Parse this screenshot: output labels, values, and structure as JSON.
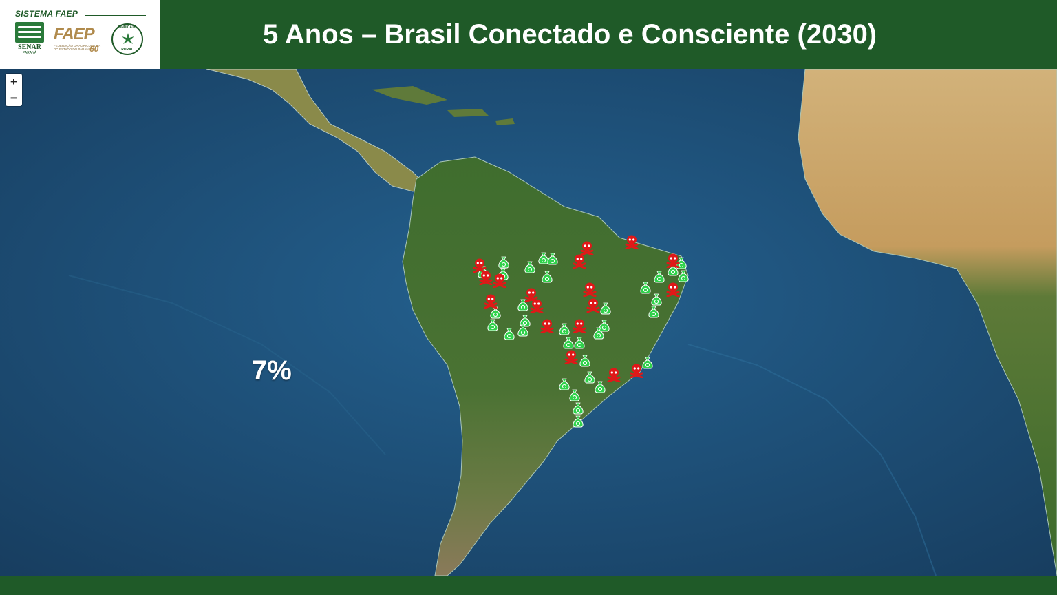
{
  "header": {
    "system_label": "SISTEMA FAEP",
    "logos": {
      "senar_name": "SENAR",
      "senar_sub": "PARANÁ",
      "faep_name": "FAEP",
      "faep_sub": "FEDERAÇÃO DA AGRICULTURA DO ESTADO DO PARANÁ",
      "faep_anniversary": "60",
      "sindicato_top": "SINDICATO",
      "sindicato_bottom": "RURAL"
    },
    "title": "5 Anos – Brasil Conectado e Consciente (2030)"
  },
  "map": {
    "zoom_in_label": "+",
    "zoom_out_label": "−",
    "percentage_label": "7%",
    "colors": {
      "ocean": "#1f4f79",
      "land": "#3d6b2c",
      "desert": "#caa86c",
      "header_green": "#1f5a28",
      "safe_marker": "#2fd24a",
      "danger_marker": "#e01818"
    },
    "marker_icons": {
      "safe": "money-bag-icon",
      "danger": "skull-crossbones-icon"
    }
  }
}
